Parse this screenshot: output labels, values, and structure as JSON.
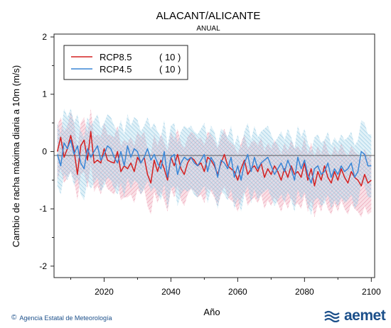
{
  "chart_data": {
    "type": "line",
    "title": "ALACANT/ALICANTE",
    "subtitle": "ANUAL",
    "xlabel": "Año",
    "ylabel": "Cambio de racha máxima diaria a 10m (m/s)",
    "xlim": [
      2005,
      2101
    ],
    "ylim": [
      -2.2,
      2.05
    ],
    "xticks": [
      2020,
      2040,
      2060,
      2080,
      2100
    ],
    "yticks": [
      -2,
      -1,
      0,
      1,
      2
    ],
    "reference_line": 0,
    "legend_position": "top-left",
    "x": [
      2006,
      2007,
      2008,
      2009,
      2010,
      2011,
      2012,
      2013,
      2014,
      2015,
      2016,
      2017,
      2018,
      2019,
      2020,
      2021,
      2022,
      2023,
      2024,
      2025,
      2026,
      2027,
      2028,
      2029,
      2030,
      2031,
      2032,
      2033,
      2034,
      2035,
      2036,
      2037,
      2038,
      2039,
      2040,
      2041,
      2042,
      2043,
      2044,
      2045,
      2046,
      2047,
      2048,
      2049,
      2050,
      2051,
      2052,
      2053,
      2054,
      2055,
      2056,
      2057,
      2058,
      2059,
      2060,
      2061,
      2062,
      2063,
      2064,
      2065,
      2066,
      2067,
      2068,
      2069,
      2070,
      2071,
      2072,
      2073,
      2074,
      2075,
      2076,
      2077,
      2078,
      2079,
      2080,
      2081,
      2082,
      2083,
      2084,
      2085,
      2086,
      2087,
      2088,
      2089,
      2090,
      2091,
      2092,
      2093,
      2094,
      2095,
      2096,
      2097,
      2098,
      2099,
      2100
    ],
    "series": [
      {
        "name": "RCP8.5",
        "count": "( 10 )",
        "color": "#d42020",
        "band_color": "#f2a6b8",
        "values": [
          0.0,
          0.25,
          -0.1,
          0.05,
          0.28,
          0.02,
          -0.4,
          0.1,
          0.2,
          -0.15,
          0.35,
          -0.2,
          -0.15,
          -0.2,
          0.05,
          -0.15,
          -0.18,
          -0.2,
          0.0,
          -0.35,
          -0.25,
          -0.3,
          -0.2,
          -0.35,
          -0.1,
          -0.2,
          -0.1,
          -0.4,
          -0.55,
          -0.15,
          -0.35,
          -0.15,
          -0.3,
          -0.5,
          -0.1,
          -0.25,
          -0.05,
          -0.3,
          -0.4,
          -0.2,
          -0.1,
          -0.15,
          -0.25,
          -0.2,
          -0.35,
          -0.1,
          -0.15,
          -0.25,
          -0.4,
          -0.2,
          -0.05,
          -0.25,
          -0.3,
          -0.35,
          -0.5,
          -0.3,
          -0.15,
          -0.4,
          -0.3,
          -0.25,
          -0.35,
          -0.2,
          -0.45,
          -0.3,
          -0.4,
          -0.25,
          -0.35,
          -0.5,
          -0.3,
          -0.45,
          -0.25,
          -0.4,
          -0.35,
          -0.45,
          -0.2,
          -0.5,
          -0.3,
          -0.6,
          -0.35,
          -0.5,
          -0.25,
          -0.45,
          -0.55,
          -0.35,
          -0.5,
          -0.3,
          -0.45,
          -0.55,
          -0.35,
          -0.45,
          -0.5,
          -0.6,
          -0.4,
          -0.55,
          -0.5
        ],
        "lower": [
          -0.5,
          -0.3,
          -0.55,
          -0.45,
          -0.35,
          -0.5,
          -0.85,
          -0.4,
          -0.35,
          -0.65,
          -0.2,
          -0.7,
          -0.6,
          -0.75,
          -0.5,
          -0.65,
          -0.7,
          -0.75,
          -0.55,
          -0.85,
          -0.8,
          -0.8,
          -0.75,
          -0.9,
          -0.65,
          -0.75,
          -0.65,
          -0.95,
          -1.1,
          -0.7,
          -0.9,
          -0.7,
          -0.85,
          -1.05,
          -0.65,
          -0.8,
          -0.6,
          -0.85,
          -0.95,
          -0.75,
          -0.65,
          -0.7,
          -0.8,
          -0.75,
          -0.9,
          -0.65,
          -0.7,
          -0.8,
          -0.95,
          -0.75,
          -0.6,
          -0.8,
          -0.85,
          -0.9,
          -1.05,
          -0.85,
          -0.7,
          -0.95,
          -0.85,
          -0.8,
          -0.9,
          -0.75,
          -1.0,
          -0.85,
          -0.95,
          -0.8,
          -0.9,
          -1.05,
          -0.85,
          -1.0,
          -0.8,
          -0.95,
          -0.9,
          -1.0,
          -0.75,
          -1.05,
          -0.85,
          -1.15,
          -0.9,
          -1.05,
          -0.8,
          -1.0,
          -1.1,
          -0.9,
          -1.05,
          -0.85,
          -1.0,
          -1.1,
          -0.9,
          -1.0,
          -1.05,
          -1.15,
          -0.95,
          -1.1,
          -1.05
        ],
        "upper": [
          0.45,
          0.6,
          0.35,
          0.45,
          0.7,
          0.5,
          0.05,
          0.5,
          0.6,
          0.3,
          0.75,
          0.25,
          0.3,
          0.25,
          0.5,
          0.3,
          0.28,
          0.25,
          0.45,
          0.1,
          0.2,
          0.15,
          0.25,
          0.1,
          0.35,
          0.25,
          0.35,
          0.05,
          -0.05,
          0.3,
          0.1,
          0.3,
          0.15,
          0.0,
          0.35,
          0.2,
          0.4,
          0.15,
          0.05,
          0.25,
          0.35,
          0.3,
          0.2,
          0.25,
          0.1,
          0.35,
          0.3,
          0.2,
          0.05,
          0.25,
          0.4,
          0.2,
          0.15,
          0.1,
          -0.05,
          0.15,
          0.3,
          0.05,
          0.15,
          0.2,
          0.1,
          0.25,
          0.0,
          0.15,
          0.05,
          0.2,
          0.1,
          -0.05,
          0.15,
          0.0,
          0.2,
          0.05,
          0.1,
          0.0,
          0.25,
          -0.05,
          0.15,
          -0.1,
          0.1,
          -0.05,
          0.2,
          0.0,
          -0.1,
          0.1,
          -0.05,
          0.15,
          0.0,
          -0.1,
          0.1,
          0.0,
          -0.05,
          -0.15,
          0.05,
          -0.1,
          -0.05
        ]
      },
      {
        "name": "RCP4.5",
        "count": "( 10 )",
        "color": "#3a86d6",
        "band_color": "#a9d6ea",
        "values": [
          -0.05,
          -0.25,
          0.15,
          0.05,
          0.2,
          -0.05,
          0.1,
          -0.2,
          -0.3,
          0.05,
          -0.1,
          0.0,
          0.1,
          -0.15,
          -0.05,
          0.1,
          0.05,
          -0.1,
          -0.2,
          0.0,
          -0.25,
          0.1,
          -0.1,
          0.05,
          0.0,
          -0.2,
          -0.1,
          0.05,
          -0.15,
          -0.05,
          -0.2,
          -0.3,
          0.0,
          -0.45,
          -0.1,
          -0.05,
          -0.4,
          -0.2,
          -0.1,
          -0.15,
          -0.1,
          -0.2,
          -0.25,
          -0.15,
          -0.05,
          -0.35,
          -0.1,
          -0.2,
          -0.45,
          -0.15,
          -0.2,
          -0.3,
          -0.1,
          -0.45,
          -0.25,
          -0.5,
          -0.2,
          -0.05,
          -0.35,
          -0.1,
          -0.3,
          -0.2,
          -0.15,
          -0.1,
          -0.25,
          -0.4,
          -0.3,
          -0.2,
          -0.35,
          -0.15,
          -0.3,
          -0.5,
          -0.1,
          -0.3,
          -0.15,
          -0.4,
          -0.55,
          -0.3,
          -0.25,
          -0.4,
          -0.35,
          -0.2,
          -0.45,
          -0.3,
          -0.4,
          -0.25,
          -0.35,
          -0.3,
          -0.2,
          -0.45,
          -0.35,
          0.0,
          -0.05,
          -0.25,
          -0.25
        ],
        "lower": [
          -0.6,
          -0.75,
          -0.4,
          -0.5,
          -0.35,
          -0.6,
          -0.45,
          -0.75,
          -0.85,
          -0.5,
          -0.65,
          -0.55,
          -0.45,
          -0.7,
          -0.6,
          -0.45,
          -0.5,
          -0.65,
          -0.75,
          -0.55,
          -0.8,
          -0.45,
          -0.65,
          -0.5,
          -0.55,
          -0.75,
          -0.65,
          -0.5,
          -0.7,
          -0.6,
          -0.75,
          -0.85,
          -0.55,
          -1.0,
          -0.65,
          -0.6,
          -0.95,
          -0.75,
          -0.65,
          -0.7,
          -0.65,
          -0.75,
          -0.8,
          -0.7,
          -0.6,
          -0.9,
          -0.65,
          -0.75,
          -1.0,
          -0.7,
          -0.75,
          -0.85,
          -0.65,
          -1.0,
          -0.8,
          -1.05,
          -0.75,
          -0.6,
          -0.9,
          -0.65,
          -0.85,
          -0.75,
          -0.7,
          -0.65,
          -0.8,
          -0.95,
          -0.85,
          -0.75,
          -0.9,
          -0.7,
          -0.85,
          -1.05,
          -0.65,
          -0.85,
          -0.7,
          -0.95,
          -1.1,
          -0.85,
          -0.8,
          -0.95,
          -0.9,
          -0.75,
          -1.0,
          -0.85,
          -0.95,
          -0.8,
          -0.9,
          -0.85,
          -0.75,
          -1.0,
          -0.9,
          -0.55,
          -0.6,
          -0.8,
          -0.8
        ],
        "upper": [
          0.5,
          0.3,
          0.75,
          0.6,
          0.75,
          0.5,
          0.65,
          0.35,
          0.25,
          0.6,
          0.45,
          0.55,
          0.65,
          0.4,
          0.5,
          0.65,
          0.6,
          0.45,
          0.35,
          0.55,
          0.3,
          0.65,
          0.45,
          0.6,
          0.55,
          0.35,
          0.45,
          0.6,
          0.4,
          0.5,
          0.35,
          0.25,
          0.55,
          0.1,
          0.45,
          0.5,
          0.15,
          0.35,
          0.45,
          0.4,
          0.45,
          0.35,
          0.3,
          0.4,
          0.5,
          0.2,
          0.45,
          0.35,
          0.1,
          0.4,
          0.35,
          0.25,
          0.45,
          0.1,
          0.3,
          0.05,
          0.35,
          0.5,
          0.2,
          0.45,
          0.25,
          0.35,
          0.4,
          0.45,
          0.3,
          0.15,
          0.25,
          0.35,
          0.2,
          0.4,
          0.25,
          0.05,
          0.45,
          0.25,
          0.4,
          0.15,
          0.0,
          0.25,
          0.3,
          0.15,
          0.2,
          0.35,
          0.1,
          0.25,
          0.15,
          0.3,
          0.2,
          0.25,
          0.35,
          0.1,
          0.2,
          0.55,
          0.5,
          0.3,
          0.3
        ]
      }
    ]
  },
  "footer": {
    "copyright_symbol": "©",
    "agency": "Agencia Estatal de Meteorología",
    "logo_text": "aemet"
  }
}
